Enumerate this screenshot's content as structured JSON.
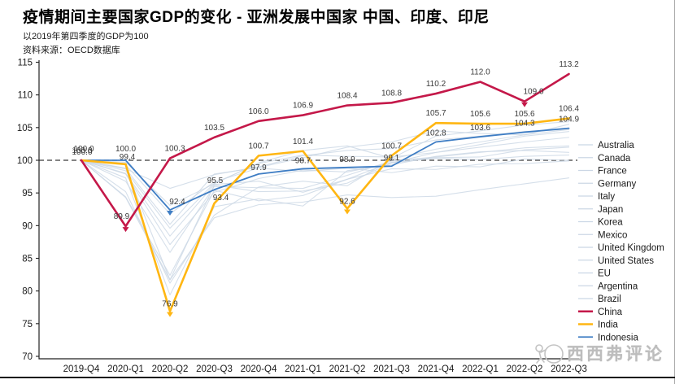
{
  "header": {
    "title": "疫情期间主要国家GDP的变化 - 亚洲发展中国家 中国、印度、印尼",
    "subtitle": "以2019年第四季度的GDP为100",
    "source": "资料来源：OECD数据库"
  },
  "watermark": {
    "text": "西西弗评论"
  },
  "colors": {
    "china": "#C41849",
    "india": "#FFB612",
    "indonesia": "#3E7DC4",
    "other_series": "#CBD7E5",
    "reference_line": "#3a3a3a",
    "axis": "#222222",
    "label_text": "#3a3a3a"
  },
  "chart_data": {
    "type": "line",
    "title": "疫情期间主要国家GDP的变化 - 亚洲发展中国家 中国、印度、印尼",
    "subtitle": "以2019年第四季度的GDP为100",
    "source": "资料来源：OECD数据库",
    "x": [
      "2019-Q4",
      "2020-Q1",
      "2020-Q2",
      "2020-Q3",
      "2020-Q4",
      "2021-Q1",
      "2021-Q2",
      "2021-Q3",
      "2021-Q4",
      "2022-Q1",
      "2022-Q2",
      "2022-Q3"
    ],
    "ylim": [
      70,
      115
    ],
    "yticks": [
      70,
      75,
      80,
      85,
      90,
      95,
      100,
      105,
      110,
      115
    ],
    "reference_value": 100,
    "grid": false,
    "legend_position": "right",
    "series": [
      {
        "name": "Australia",
        "emphasis": false,
        "values": [
          100,
          99.7,
          93.1,
          96.4,
          99.6,
          101.5,
          102.2,
          100.3,
          103.7,
          104.5,
          105.4,
          105.9
        ]
      },
      {
        "name": "Canada",
        "emphasis": false,
        "values": [
          100,
          97.9,
          87.1,
          95.1,
          97.2,
          98.5,
          98.2,
          99.6,
          101.2,
          102.0,
          102.8,
          103.5
        ]
      },
      {
        "name": "France",
        "emphasis": false,
        "values": [
          100,
          94.3,
          81.7,
          96.2,
          95.2,
          95.3,
          96.5,
          99.6,
          100.3,
          100.1,
          100.6,
          100.8
        ]
      },
      {
        "name": "Germany",
        "emphasis": false,
        "values": [
          100,
          98.0,
          88.4,
          96.3,
          96.8,
          95.1,
          97.1,
          98.7,
          98.6,
          99.4,
          99.5,
          99.9
        ]
      },
      {
        "name": "Italy",
        "emphasis": false,
        "values": [
          100,
          94.4,
          82.4,
          95.4,
          93.8,
          94.6,
          97.1,
          99.7,
          100.4,
          100.5,
          101.6,
          102.0
        ]
      },
      {
        "name": "Japan",
        "emphasis": false,
        "values": [
          100,
          99.3,
          91.8,
          96.7,
          98.8,
          98.3,
          98.8,
          98.1,
          99.1,
          99.0,
          100.2,
          100.0
        ]
      },
      {
        "name": "Korea",
        "emphasis": false,
        "values": [
          100,
          98.7,
          95.7,
          97.8,
          99.0,
          100.7,
          101.5,
          101.8,
          103.1,
          103.7,
          104.4,
          104.7
        ]
      },
      {
        "name": "Mexico",
        "emphasis": false,
        "values": [
          100,
          98.8,
          81.7,
          91.2,
          93.2,
          93.6,
          94.7,
          94.3,
          94.5,
          95.5,
          96.4,
          97.3
        ]
      },
      {
        "name": "United Kingdom",
        "emphasis": false,
        "values": [
          100,
          97.3,
          79.4,
          92.9,
          94.1,
          93.0,
          98.4,
          99.3,
          100.6,
          101.3,
          101.5,
          101.2
        ]
      },
      {
        "name": "United States",
        "emphasis": false,
        "values": [
          100,
          98.7,
          90.2,
          97.9,
          98.9,
          100.4,
          102.0,
          102.8,
          104.5,
          104.1,
          103.9,
          104.7
        ]
      },
      {
        "name": "EU",
        "emphasis": false,
        "values": [
          100,
          96.8,
          85.9,
          96.0,
          95.8,
          95.7,
          97.7,
          99.9,
          100.5,
          101.2,
          101.9,
          102.2
        ]
      },
      {
        "name": "Argentina",
        "emphasis": false,
        "values": [
          100,
          95.2,
          81.2,
          91.6,
          95.9,
          96.8,
          96.1,
          100.2,
          101.7,
          102.8,
          103.9,
          105.5
        ]
      },
      {
        "name": "Brazil",
        "emphasis": false,
        "values": [
          100,
          98.4,
          89.6,
          96.5,
          99.5,
          100.8,
          100.6,
          100.5,
          101.2,
          102.4,
          103.7,
          104.4
        ]
      },
      {
        "name": "China",
        "emphasis": true,
        "color": "#C41849",
        "width": 2.6,
        "labeled": true,
        "values": [
          100.0,
          89.9,
          100.3,
          103.5,
          106.0,
          106.9,
          108.4,
          108.8,
          110.2,
          112.0,
          109.0,
          113.2
        ]
      },
      {
        "name": "India",
        "emphasis": true,
        "color": "#FFB612",
        "width": 2.6,
        "labeled": true,
        "values": [
          100.0,
          99.4,
          76.9,
          93.4,
          100.7,
          101.4,
          92.6,
          100.7,
          105.7,
          105.6,
          105.6,
          106.4
        ]
      },
      {
        "name": "Indonesia",
        "emphasis": true,
        "color": "#3E7DC4",
        "width": 1.8,
        "labeled": true,
        "values": [
          100.0,
          100.0,
          92.4,
          95.5,
          97.9,
          98.7,
          98.9,
          99.1,
          102.8,
          103.6,
          104.3,
          104.9
        ]
      }
    ],
    "dip_markers": [
      {
        "series": "China",
        "index": 1
      },
      {
        "series": "China",
        "index": 10
      },
      {
        "series": "India",
        "index": 2
      },
      {
        "series": "India",
        "index": 6
      },
      {
        "series": "Indonesia",
        "index": 2
      }
    ]
  }
}
